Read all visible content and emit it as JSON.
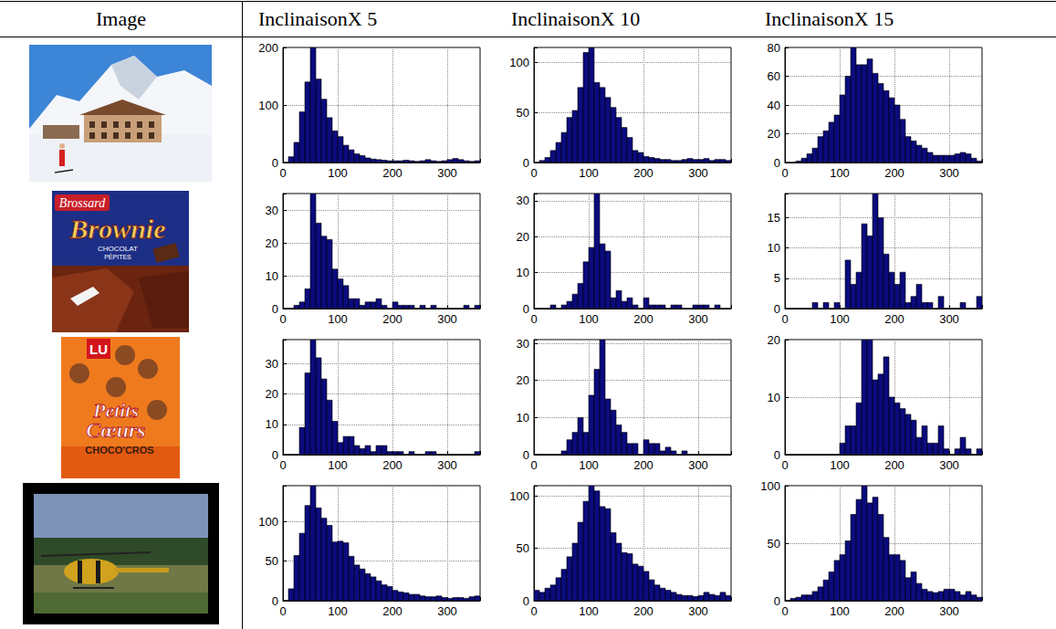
{
  "header": [
    "Image",
    "InclinaisonX 5",
    "InclinaisonX 10",
    "InclinaisonX 15"
  ],
  "images": [
    {
      "type": "photo"
    },
    {
      "type": "photo",
      "texts": [
        "Brossard",
        "Brownie",
        "CHOCOLAT",
        "PÉPITES"
      ]
    },
    {
      "type": "photo",
      "texts": [
        "LU",
        "Petits",
        "Cœurs",
        "CHOCO'CROS"
      ]
    },
    {
      "type": "photo"
    }
  ],
  "chart_data": [
    {
      "type": "histogram",
      "color": "#0b0b7e",
      "grid": true,
      "bins": [
        0,
        10,
        20,
        30,
        40,
        50,
        60,
        70,
        80,
        90,
        100,
        110,
        120,
        130,
        140,
        150,
        160,
        170,
        180,
        190,
        200,
        210,
        220,
        230,
        240,
        250,
        260,
        270,
        280,
        290,
        300,
        310,
        320,
        330,
        340,
        350,
        360
      ],
      "values": [
        0,
        10,
        35,
        88,
        140,
        200,
        145,
        110,
        78,
        55,
        45,
        30,
        22,
        15,
        12,
        8,
        6,
        5,
        4,
        3,
        3,
        3,
        4,
        3,
        2,
        3,
        5,
        3,
        2,
        3,
        5,
        7,
        5,
        3,
        2,
        3
      ],
      "xlim": [
        0,
        360
      ],
      "xticks": [
        0,
        100,
        200,
        300
      ],
      "ylim": [
        0,
        200
      ],
      "yticks": [
        0,
        100,
        200
      ]
    },
    {
      "type": "histogram",
      "color": "#0b0b7e",
      "grid": true,
      "bins": [
        0,
        10,
        20,
        30,
        40,
        50,
        60,
        70,
        80,
        90,
        100,
        110,
        120,
        130,
        140,
        150,
        160,
        170,
        180,
        190,
        200,
        210,
        220,
        230,
        240,
        250,
        260,
        270,
        280,
        290,
        300,
        310,
        320,
        330,
        340,
        350,
        360
      ],
      "values": [
        0,
        2,
        5,
        12,
        20,
        30,
        45,
        52,
        75,
        110,
        115,
        80,
        75,
        65,
        55,
        45,
        35,
        25,
        12,
        10,
        6,
        5,
        4,
        3,
        3,
        2,
        2,
        3,
        4,
        3,
        3,
        4,
        2,
        3,
        3,
        2
      ],
      "xlim": [
        0,
        360
      ],
      "xticks": [
        0,
        100,
        200,
        300
      ],
      "ylim": [
        0,
        115
      ],
      "yticks": [
        0,
        50,
        100
      ]
    },
    {
      "type": "histogram",
      "color": "#0b0b7e",
      "grid": true,
      "bins": [
        0,
        10,
        20,
        30,
        40,
        50,
        60,
        70,
        80,
        90,
        100,
        110,
        120,
        130,
        140,
        150,
        160,
        170,
        180,
        190,
        200,
        210,
        220,
        230,
        240,
        250,
        260,
        270,
        280,
        290,
        300,
        310,
        320,
        330,
        340,
        350,
        360
      ],
      "values": [
        0,
        0,
        1,
        3,
        6,
        10,
        18,
        22,
        28,
        33,
        47,
        60,
        80,
        68,
        68,
        72,
        62,
        55,
        50,
        45,
        40,
        30,
        18,
        15,
        12,
        10,
        7,
        5,
        5,
        5,
        5,
        6,
        7,
        6,
        3,
        1
      ],
      "xlim": [
        0,
        360
      ],
      "xticks": [
        0,
        100,
        200,
        300
      ],
      "ylim": [
        0,
        80
      ],
      "yticks": [
        0,
        20,
        40,
        60,
        80
      ]
    },
    {
      "type": "histogram",
      "color": "#0b0b7e",
      "grid": true,
      "bins": [
        0,
        10,
        20,
        30,
        40,
        50,
        60,
        70,
        80,
        90,
        100,
        110,
        120,
        130,
        140,
        150,
        160,
        170,
        180,
        190,
        200,
        210,
        220,
        230,
        240,
        250,
        260,
        270,
        280,
        290,
        300,
        310,
        320,
        330,
        340,
        350,
        360
      ],
      "values": [
        0,
        0,
        1,
        2,
        6,
        35,
        26,
        22,
        21,
        12,
        9,
        7,
        3,
        3,
        1,
        2,
        2,
        3,
        1,
        0,
        2,
        1,
        1,
        1,
        0,
        1,
        0,
        1,
        0,
        0,
        0,
        0,
        0,
        1,
        0,
        1
      ],
      "xlim": [
        0,
        360
      ],
      "xticks": [
        0,
        100,
        200,
        300
      ],
      "ylim": [
        0,
        35
      ],
      "yticks": [
        0,
        10,
        20,
        30
      ]
    },
    {
      "type": "histogram",
      "color": "#0b0b7e",
      "grid": true,
      "bins": [
        0,
        10,
        20,
        30,
        40,
        50,
        60,
        70,
        80,
        90,
        100,
        110,
        120,
        130,
        140,
        150,
        160,
        170,
        180,
        190,
        200,
        210,
        220,
        230,
        240,
        250,
        260,
        270,
        280,
        290,
        300,
        310,
        320,
        330,
        340,
        350,
        360
      ],
      "values": [
        0,
        0,
        0,
        1,
        0,
        1,
        2,
        4,
        7,
        13,
        17,
        32,
        18,
        16,
        3,
        5,
        2,
        3,
        1,
        0,
        3,
        1,
        1,
        1,
        0,
        1,
        1,
        0,
        0,
        1,
        1,
        1,
        0,
        1,
        0,
        0
      ],
      "xlim": [
        0,
        360
      ],
      "xticks": [
        0,
        100,
        200,
        300
      ],
      "ylim": [
        0,
        32
      ],
      "yticks": [
        0,
        10,
        20,
        30
      ]
    },
    {
      "type": "histogram",
      "color": "#0b0b7e",
      "grid": true,
      "bins": [
        0,
        10,
        20,
        30,
        40,
        50,
        60,
        70,
        80,
        90,
        100,
        110,
        120,
        130,
        140,
        150,
        160,
        170,
        180,
        190,
        200,
        210,
        220,
        230,
        240,
        250,
        260,
        270,
        280,
        290,
        300,
        310,
        320,
        330,
        340,
        350,
        360
      ],
      "values": [
        0,
        0,
        0,
        0,
        0,
        1,
        0,
        1,
        0,
        1,
        0,
        8,
        4,
        6,
        14,
        12,
        19,
        15,
        9,
        6,
        4,
        6,
        1,
        2,
        4,
        1,
        1,
        0,
        2,
        0,
        0,
        0,
        1,
        0,
        0,
        2
      ],
      "xlim": [
        0,
        360
      ],
      "xticks": [
        0,
        100,
        200,
        300
      ],
      "ylim": [
        0,
        19
      ],
      "yticks": [
        0,
        5,
        10,
        15
      ]
    },
    {
      "type": "histogram",
      "color": "#0b0b7e",
      "grid": true,
      "bins": [
        0,
        10,
        20,
        30,
        40,
        50,
        60,
        70,
        80,
        90,
        100,
        110,
        120,
        130,
        140,
        150,
        160,
        170,
        180,
        190,
        200,
        210,
        220,
        230,
        240,
        250,
        260,
        270,
        280,
        290,
        300,
        310,
        320,
        330,
        340,
        350,
        360
      ],
      "values": [
        0,
        0,
        0,
        9,
        27,
        38,
        32,
        25,
        18,
        11,
        4,
        6,
        6,
        3,
        2,
        3,
        1,
        3,
        3,
        1,
        1,
        1,
        0,
        1,
        0,
        0,
        1,
        1,
        0,
        0,
        0,
        0,
        0,
        0,
        0,
        1
      ],
      "xlim": [
        0,
        360
      ],
      "xticks": [
        0,
        100,
        200,
        300
      ],
      "ylim": [
        0,
        38
      ],
      "yticks": [
        0,
        10,
        20,
        30
      ]
    },
    {
      "type": "histogram",
      "color": "#0b0b7e",
      "grid": true,
      "bins": [
        0,
        10,
        20,
        30,
        40,
        50,
        60,
        70,
        80,
        90,
        100,
        110,
        120,
        130,
        140,
        150,
        160,
        170,
        180,
        190,
        200,
        210,
        220,
        230,
        240,
        250,
        260,
        270,
        280,
        290,
        300,
        310,
        320,
        330,
        340,
        350,
        360
      ],
      "values": [
        0,
        0,
        0,
        0,
        0,
        1,
        4,
        6,
        10,
        6,
        16,
        23,
        31,
        15,
        12,
        8,
        6,
        3,
        3,
        0,
        4,
        3,
        3,
        1,
        2,
        1,
        0,
        1,
        0,
        0,
        0,
        0,
        0,
        0,
        0,
        0
      ],
      "xlim": [
        0,
        360
      ],
      "xticks": [
        0,
        100,
        200,
        300
      ],
      "ylim": [
        0,
        31
      ],
      "yticks": [
        0,
        10,
        20,
        30
      ]
    },
    {
      "type": "histogram",
      "color": "#0b0b7e",
      "grid": true,
      "bins": [
        0,
        10,
        20,
        30,
        40,
        50,
        60,
        70,
        80,
        90,
        100,
        110,
        120,
        130,
        140,
        150,
        160,
        170,
        180,
        190,
        200,
        210,
        220,
        230,
        240,
        250,
        260,
        270,
        280,
        290,
        300,
        310,
        320,
        330,
        340,
        350,
        360
      ],
      "values": [
        0,
        0,
        0,
        0,
        0,
        0,
        0,
        0,
        0,
        0,
        2,
        5,
        5,
        9,
        20,
        20,
        13,
        14,
        17,
        10,
        9,
        8,
        7,
        6,
        3,
        5,
        2,
        2,
        5,
        1,
        0,
        1,
        3,
        1,
        0,
        1
      ],
      "xlim": [
        0,
        360
      ],
      "xticks": [
        0,
        100,
        200,
        300
      ],
      "ylim": [
        0,
        20
      ],
      "yticks": [
        0,
        10,
        20
      ]
    },
    {
      "type": "histogram",
      "color": "#0b0b7e",
      "grid": true,
      "bins": [
        0,
        10,
        20,
        30,
        40,
        50,
        60,
        70,
        80,
        90,
        100,
        110,
        120,
        130,
        140,
        150,
        160,
        170,
        180,
        190,
        200,
        210,
        220,
        230,
        240,
        250,
        260,
        270,
        280,
        290,
        300,
        310,
        320,
        330,
        340,
        350,
        360
      ],
      "values": [
        0,
        15,
        57,
        85,
        120,
        145,
        117,
        104,
        95,
        74,
        75,
        73,
        56,
        45,
        40,
        34,
        30,
        25,
        20,
        18,
        13,
        11,
        10,
        8,
        8,
        6,
        5,
        5,
        6,
        4,
        3,
        4,
        4,
        3,
        5,
        6
      ],
      "xlim": [
        0,
        360
      ],
      "xticks": [
        0,
        100,
        200,
        300
      ],
      "ylim": [
        0,
        145
      ],
      "yticks": [
        0,
        50,
        100
      ]
    },
    {
      "type": "histogram",
      "color": "#0b0b7e",
      "grid": true,
      "bins": [
        0,
        10,
        20,
        30,
        40,
        50,
        60,
        70,
        80,
        90,
        100,
        110,
        120,
        130,
        140,
        150,
        160,
        170,
        180,
        190,
        200,
        210,
        220,
        230,
        240,
        250,
        260,
        270,
        280,
        290,
        300,
        310,
        320,
        330,
        340,
        350,
        360
      ],
      "values": [
        10,
        8,
        12,
        15,
        22,
        30,
        42,
        55,
        75,
        95,
        110,
        105,
        90,
        88,
        65,
        55,
        46,
        45,
        35,
        33,
        28,
        20,
        15,
        12,
        10,
        8,
        6,
        5,
        5,
        4,
        5,
        8,
        6,
        5,
        8,
        5
      ],
      "xlim": [
        0,
        360
      ],
      "xticks": [
        0,
        100,
        200,
        300
      ],
      "ylim": [
        0,
        110
      ],
      "yticks": [
        0,
        50,
        100
      ]
    },
    {
      "type": "histogram",
      "color": "#0b0b7e",
      "grid": true,
      "bins": [
        0,
        10,
        20,
        30,
        40,
        50,
        60,
        70,
        80,
        90,
        100,
        110,
        120,
        130,
        140,
        150,
        160,
        170,
        180,
        190,
        200,
        210,
        220,
        230,
        240,
        250,
        260,
        270,
        280,
        290,
        300,
        310,
        320,
        330,
        340,
        350,
        360
      ],
      "values": [
        0,
        2,
        3,
        5,
        5,
        8,
        12,
        18,
        25,
        35,
        40,
        52,
        75,
        88,
        100,
        85,
        90,
        75,
        55,
        40,
        40,
        35,
        20,
        25,
        15,
        10,
        8,
        7,
        8,
        10,
        10,
        8,
        5,
        8,
        5,
        3
      ],
      "xlim": [
        0,
        360
      ],
      "xticks": [
        0,
        100,
        200,
        300
      ],
      "ylim": [
        0,
        100
      ],
      "yticks": [
        0,
        50,
        100
      ]
    }
  ]
}
